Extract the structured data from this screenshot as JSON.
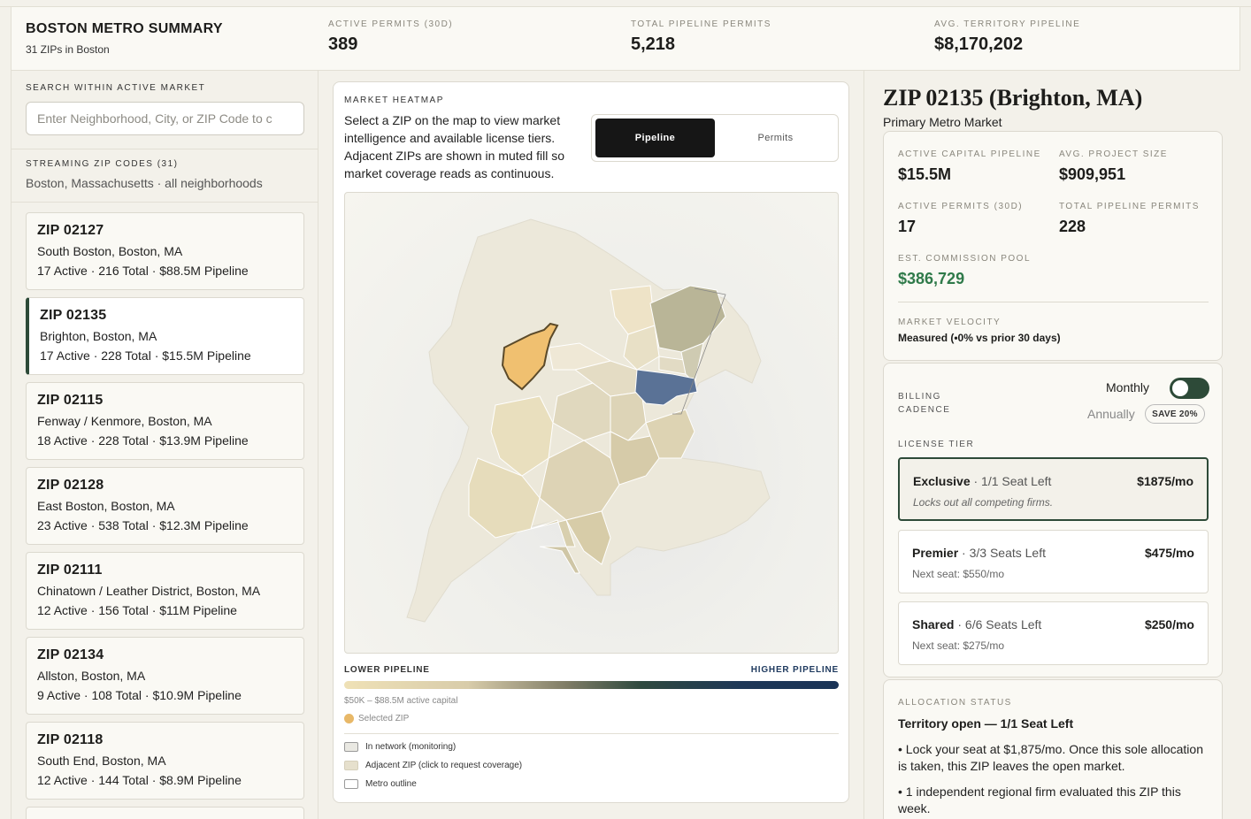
{
  "header": {
    "title": "BOSTON METRO SUMMARY",
    "subtitle": "31 ZIPs in Boston",
    "stats": [
      {
        "label": "ACTIVE PERMITS (30D)",
        "value": "389"
      },
      {
        "label": "TOTAL PIPELINE PERMITS",
        "value": "5,218"
      },
      {
        "label": "AVG. TERRITORY PIPELINE",
        "value": "$8,170,202"
      }
    ]
  },
  "sidebar": {
    "search_label": "SEARCH WITHIN ACTIVE MARKET",
    "search_placeholder": "Enter Neighborhood, City, or ZIP Code to c",
    "stream_label": "STREAMING ZIP CODES (31)",
    "stream_sub": "Boston, Massachusetts · all neighborhoods",
    "zips": [
      {
        "zip": "ZIP 02127",
        "name": "South Boston, Boston, MA",
        "stats": "17 Active · 216 Total · $88.5M Pipeline"
      },
      {
        "zip": "ZIP 02135",
        "name": "Brighton, Boston, MA",
        "stats": "17 Active · 228 Total · $15.5M Pipeline"
      },
      {
        "zip": "ZIP 02115",
        "name": "Fenway / Kenmore, Boston, MA",
        "stats": "18 Active · 228 Total · $13.9M Pipeline"
      },
      {
        "zip": "ZIP 02128",
        "name": "East Boston, Boston, MA",
        "stats": "23 Active · 538 Total · $12.3M Pipeline"
      },
      {
        "zip": "ZIP 02111",
        "name": "Chinatown / Leather District, Boston, MA",
        "stats": "12 Active · 156 Total · $11M Pipeline"
      },
      {
        "zip": "ZIP 02134",
        "name": "Allston, Boston, MA",
        "stats": "9 Active · 108 Total · $10.9M Pipeline"
      },
      {
        "zip": "ZIP 02118",
        "name": "South End, Boston, MA",
        "stats": "12 Active · 144 Total · $8.9M Pipeline"
      }
    ]
  },
  "heatmap": {
    "label": "MARKET HEATMAP",
    "description": "Select a ZIP on the map to view market intelligence and available license tiers. Adjacent ZIPs are shown in muted fill so market coverage reads as continuous.",
    "toggle_pipeline": "Pipeline",
    "toggle_permits": "Permits",
    "legend_low": "LOWER PIPELINE",
    "legend_high": "HIGHER PIPELINE",
    "legend_range": "$50K – $88.5M active capital",
    "selected_zip_label": "Selected ZIP",
    "legend_items": [
      {
        "label": "In network (monitoring)",
        "color": "#e9e8e2"
      },
      {
        "label": "Adjacent ZIP (click to request coverage)",
        "color": "#e6e0cd"
      },
      {
        "label": "Metro outline",
        "color": "#ffffff"
      }
    ],
    "colors": {
      "selected": "#f0c070",
      "highlight": "#5a7296"
    }
  },
  "detail": {
    "title": "ZIP 02135 (Brighton, MA)",
    "subtitle": "Primary Metro Market",
    "metrics": [
      {
        "label": "ACTIVE CAPITAL PIPELINE",
        "value": "$15.5M"
      },
      {
        "label": "AVG. PROJECT SIZE",
        "value": "$909,951"
      },
      {
        "label": "ACTIVE PERMITS (30D)",
        "value": "17"
      },
      {
        "label": "TOTAL PIPELINE PERMITS",
        "value": "228"
      },
      {
        "label": "EST. COMMISSION POOL",
        "value": "$386,729"
      }
    ],
    "velocity_label": "MARKET VELOCITY",
    "velocity_value": "Measured (•0% vs prior 30 days)",
    "billing_label": "BILLING CADENCE",
    "monthly": "Monthly",
    "annually": "Annually",
    "save": "SAVE 20%",
    "license_label": "LICENSE TIER",
    "tiers": [
      {
        "name": "Exclusive",
        "seats": " · 1/1 Seat Left",
        "price": "$1875/mo",
        "note": "Locks out all competing firms."
      },
      {
        "name": "Premier",
        "seats": " · 3/3 Seats Left",
        "price": "$475/mo",
        "note": "Next seat: $550/mo"
      },
      {
        "name": "Shared",
        "seats": " · 6/6 Seats Left",
        "price": "$250/mo",
        "note": "Next seat: $275/mo"
      }
    ],
    "allocation_label": "ALLOCATION STATUS",
    "allocation_head": "Territory open — 1/1 Seat Left",
    "allocation_bullets": [
      "• Lock your seat at $1,875/mo. Once this sole allocation is taken, this ZIP leaves the open market.",
      "• 1 independent regional firm evaluated this ZIP this week."
    ]
  }
}
